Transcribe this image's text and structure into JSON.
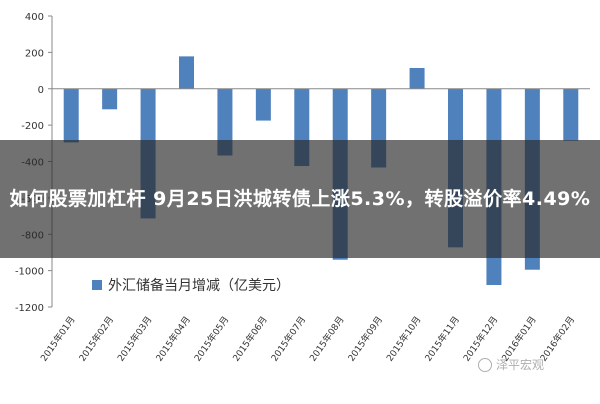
{
  "chart_data": {
    "type": "bar",
    "categories": [
      "2015年01月",
      "2015年02月",
      "2015年03月",
      "2015年04月",
      "2015年05月",
      "2015年06月",
      "2015年07月",
      "2015年08月",
      "2015年09月",
      "2015年10月",
      "2015年11月",
      "2015年12月",
      "2016年01月",
      "2016年02月"
    ],
    "series": [
      {
        "name": "外汇储备当月增减（亿美元）",
        "values": [
          -295,
          -113,
          -713,
          178,
          -367,
          -175,
          -425,
          -940,
          -433,
          114,
          -872,
          -1079,
          -995,
          -286
        ]
      }
    ],
    "ylim": [
      -1200,
      400
    ],
    "yticks": [
      400,
      200,
      0,
      -200,
      -400,
      -600,
      -800,
      -1000,
      -1200
    ],
    "grid": false,
    "legend_position": "bottom-left",
    "bar_color": "#4f81bd"
  },
  "overlay": {
    "headline": "如何股票加杠杆 9月25日洪城转债上涨5.3%，转股溢价率4.49%"
  },
  "watermark": {
    "text": "泽平宏观"
  }
}
